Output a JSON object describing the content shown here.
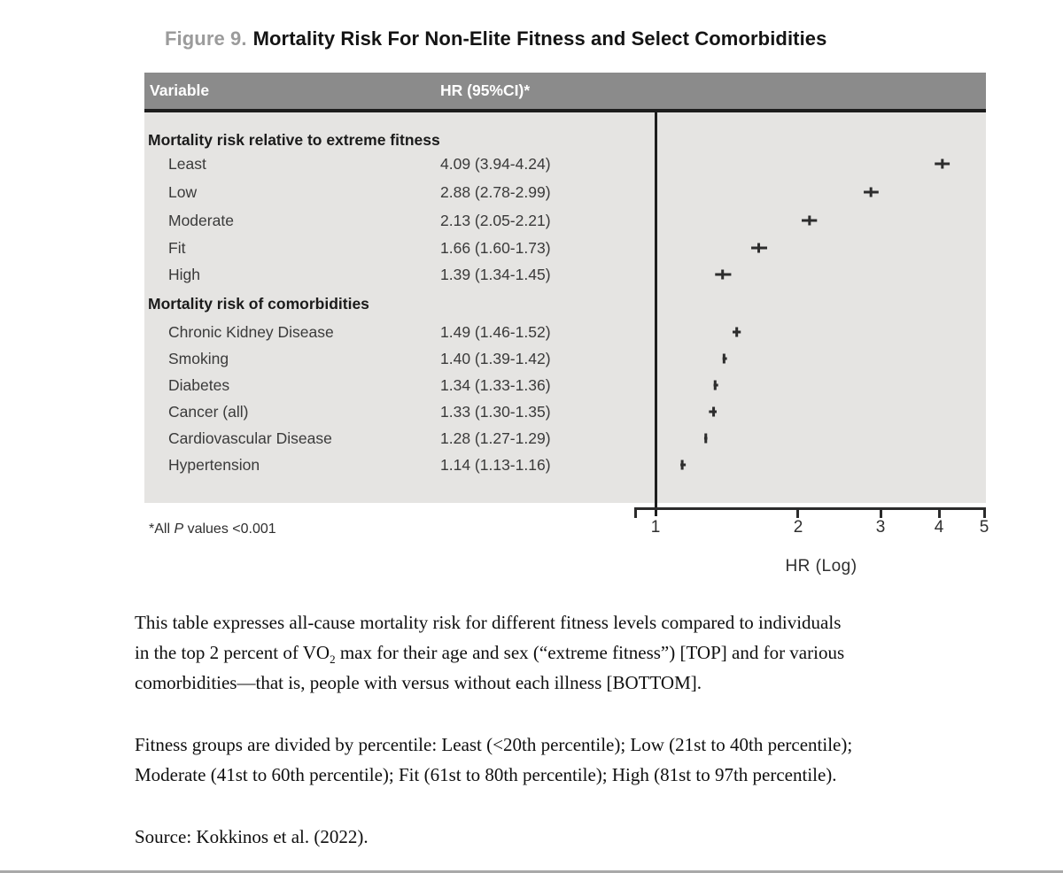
{
  "figure": {
    "label": "Figure 9.",
    "title": "Mortality Risk For Non-Elite Fitness and Select Comorbidities"
  },
  "table": {
    "columns": [
      "Variable",
      "HR (95%CI)*"
    ],
    "sections": [
      {
        "header": "Mortality risk relative to extreme fitness",
        "rows": [
          {
            "label": "Least",
            "hr": "4.09 (3.94-4.24)"
          },
          {
            "label": "Low",
            "hr": "2.88 (2.78-2.99)"
          },
          {
            "label": "Moderate",
            "hr": "2.13 (2.05-2.21)"
          },
          {
            "label": "Fit",
            "hr": "1.66 (1.60-1.73)"
          },
          {
            "label": "High",
            "hr": "1.39 (1.34-1.45)"
          }
        ]
      },
      {
        "header": "Mortality risk of comorbidities",
        "rows": [
          {
            "label": "Chronic Kidney Disease",
            "hr": "1.49 (1.46-1.52)"
          },
          {
            "label": "Smoking",
            "hr": "1.40 (1.39-1.42)"
          },
          {
            "label": "Diabetes",
            "hr": "1.34 (1.33-1.36)"
          },
          {
            "label": "Cancer (all)",
            "hr": "1.33 (1.30-1.35)"
          },
          {
            "label": "Cardiovascular Disease",
            "hr": "1.28 (1.27-1.29)"
          },
          {
            "label": "Hypertension",
            "hr": "1.14 (1.13-1.16)"
          }
        ]
      }
    ],
    "footnote": {
      "prefix": "*All ",
      "italic": "P",
      "suffix": " values <0.001"
    }
  },
  "chart_data": {
    "type": "scatter",
    "subtype": "forest-plot",
    "title": "Mortality Risk For Non-Elite Fitness and Select Comorbidities",
    "xlabel": "HR (Log)",
    "x_scale": "log",
    "xlim": [
      1,
      5
    ],
    "x_ticks": [
      "1",
      "2",
      "3",
      "4",
      "5"
    ],
    "reference_line_x": 1,
    "grid": false,
    "marker_color": "#2d2d2d",
    "series": [
      {
        "name": "Mortality risk relative to extreme fitness",
        "points": [
          {
            "label": "Least",
            "hr": 4.09,
            "ci_low": 3.94,
            "ci_high": 4.24
          },
          {
            "label": "Low",
            "hr": 2.88,
            "ci_low": 2.78,
            "ci_high": 2.99
          },
          {
            "label": "Moderate",
            "hr": 2.13,
            "ci_low": 2.05,
            "ci_high": 2.21
          },
          {
            "label": "Fit",
            "hr": 1.66,
            "ci_low": 1.6,
            "ci_high": 1.73
          },
          {
            "label": "High",
            "hr": 1.39,
            "ci_low": 1.34,
            "ci_high": 1.45
          }
        ]
      },
      {
        "name": "Mortality risk of comorbidities",
        "points": [
          {
            "label": "Chronic Kidney Disease",
            "hr": 1.49,
            "ci_low": 1.46,
            "ci_high": 1.52
          },
          {
            "label": "Smoking",
            "hr": 1.4,
            "ci_low": 1.39,
            "ci_high": 1.42
          },
          {
            "label": "Diabetes",
            "hr": 1.34,
            "ci_low": 1.33,
            "ci_high": 1.36
          },
          {
            "label": "Cancer (all)",
            "hr": 1.33,
            "ci_low": 1.3,
            "ci_high": 1.35
          },
          {
            "label": "Cardiovascular Disease",
            "hr": 1.28,
            "ci_low": 1.27,
            "ci_high": 1.29
          },
          {
            "label": "Hypertension",
            "hr": 1.14,
            "ci_low": 1.13,
            "ci_high": 1.16
          }
        ]
      }
    ]
  },
  "caption": {
    "p1_line1": "This table expresses all-cause mortality risk for different fitness levels compared to individuals",
    "p1_line2_pre": "in the top 2 percent of VO",
    "p1_line2_sub": "2",
    "p1_line2_post": " max for their age and sex (“extreme fitness”) [TOP] and for various",
    "p1_line3": "comorbidities—that is, people with versus without each illness [BOTTOM].",
    "p2_line1": "Fitness groups are divided by percentile: Least (<20th percentile); Low (21st to 40th percentile);",
    "p2_line2": "Moderate (41st to 60th percentile); Fit (61st to 80th percentile); High (81st to 97th percentile).",
    "p3": "Source: Kokkinos et al. (2022)."
  },
  "colors": {
    "header_bg": "#8b8b8b",
    "body_bg": "#e5e4e2",
    "rule": "#1d1d1d",
    "marker": "#2d2d2d",
    "title_label": "#9b9b9b"
  }
}
